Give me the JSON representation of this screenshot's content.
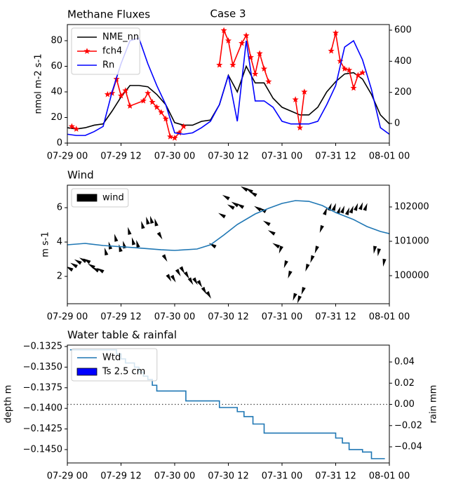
{
  "chart_data": [
    {
      "type": "line",
      "title": "Methane Fluxes",
      "suptitle": "Case 3",
      "ylabel": "nmol m-2 s-1",
      "xlim": [
        0,
        72
      ],
      "xticks": [
        {
          "value": 0,
          "label": "07-29 00"
        },
        {
          "value": 12,
          "label": "07-29 12"
        },
        {
          "value": 24,
          "label": "07-30 00"
        },
        {
          "value": 36,
          "label": "07-30 12"
        },
        {
          "value": 48,
          "label": "07-31 00"
        },
        {
          "value": 60,
          "label": "07-31 12"
        },
        {
          "value": 72,
          "label": "08-01 00"
        }
      ],
      "ylim": [
        0,
        92.6
      ],
      "yticks": [
        0,
        20,
        40,
        60,
        80
      ],
      "y2lim": [
        -126,
        636
      ],
      "y2ticks": [
        0,
        200,
        400,
        600
      ],
      "legend": "upper left",
      "grid": false,
      "x": [
        0,
        2,
        4,
        6,
        8,
        10,
        12,
        14,
        16,
        18,
        20,
        22,
        24,
        26,
        28,
        30,
        32,
        34,
        36,
        38,
        40,
        42,
        44,
        46,
        48,
        50,
        52,
        54,
        56,
        58,
        60,
        62,
        64,
        66,
        68,
        70,
        72
      ],
      "series": [
        {
          "name": "NME_nn",
          "color": "#000000",
          "values": [
            12,
            11,
            12,
            14,
            15,
            25,
            36,
            45,
            45,
            44,
            38,
            30,
            16,
            14,
            14,
            17,
            18,
            30,
            53,
            40,
            60,
            47,
            47,
            35,
            28,
            25,
            22,
            22,
            28,
            40,
            48,
            54,
            55,
            50,
            38,
            22,
            15
          ]
        },
        {
          "name": "fch4",
          "color": "#ff0000",
          "marker": "star",
          "x": [
            1,
            2,
            5,
            9,
            10,
            11,
            12,
            13,
            14,
            17,
            18,
            19,
            20,
            21,
            22,
            23,
            24,
            25,
            26,
            30,
            34,
            35,
            36,
            37,
            39,
            40,
            41,
            42,
            43,
            44,
            45,
            48,
            51,
            52,
            53,
            56,
            59,
            60,
            61,
            62,
            63,
            64,
            65,
            66
          ],
          "values": [
            13,
            11,
            null,
            38,
            39,
            50,
            37,
            41,
            29,
            33,
            39,
            32,
            28,
            24,
            19,
            5,
            4,
            8,
            13,
            null,
            61,
            88,
            80,
            61,
            78,
            84,
            67,
            54,
            70,
            58,
            48,
            null,
            34,
            12,
            40,
            null,
            72,
            86,
            64,
            58,
            57,
            43,
            53,
            55
          ]
        },
        {
          "name": "Rn",
          "color": "#0000ff",
          "axis": "y2",
          "values": [
            -69,
            -77,
            -77,
            -52,
            -19,
            203,
            384,
            532,
            549,
            384,
            244,
            121,
            -60,
            -69,
            -60,
            -27,
            14,
            121,
            310,
            14,
            532,
            145,
            145,
            104,
            14,
            -3,
            -3,
            -3,
            14,
            121,
            244,
            491,
            532,
            409,
            219,
            -27,
            -69
          ]
        }
      ]
    },
    {
      "type": "quiver",
      "title": "Wind",
      "ylabel": "m s-1",
      "xlim": [
        0,
        72
      ],
      "xticks": [
        {
          "value": 0,
          "label": "07-29 00"
        },
        {
          "value": 12,
          "label": "07-29 12"
        },
        {
          "value": 24,
          "label": "07-30 00"
        },
        {
          "value": 36,
          "label": "07-30 12"
        },
        {
          "value": 48,
          "label": "07-31 00"
        },
        {
          "value": 60,
          "label": "07-31 12"
        },
        {
          "value": 72,
          "label": "08-01 00"
        }
      ],
      "ylim": [
        0.41,
        7.31
      ],
      "yticks": [
        2,
        4,
        6
      ],
      "y2lim": [
        99184,
        102633
      ],
      "y2ticks": [
        100000,
        101000,
        102000
      ],
      "legend": "upper left",
      "grid": false,
      "series": [
        {
          "name": "wind",
          "type": "quiver",
          "color": "#000000",
          "x": [
            0.6,
            1.6,
            2.5,
            3.6,
            4.5,
            5.5,
            6.4,
            7.5,
            8.6,
            9.5,
            10.8,
            11.8,
            12.7,
            13.8,
            14.7,
            15.7,
            16.8,
            17.9,
            18.8,
            19.8,
            20.7,
            21.8,
            22.7,
            23.7,
            24.8,
            25.7,
            26.7,
            27.6,
            28.6,
            29.6,
            30.6,
            31.6,
            32.6,
            34.7,
            35.6,
            36.7,
            37.6,
            38.8,
            39.7,
            40.8,
            41.7,
            42.7,
            43.8,
            44.7,
            45.8,
            46.8,
            47.7,
            48.8,
            49.7,
            50.8,
            51.8,
            52.7,
            53.6,
            54.7,
            55.7,
            56.8,
            57.7,
            58.7,
            59.7,
            60.7,
            61.6,
            62.7,
            63.6,
            64.6,
            65.7,
            66.7,
            68.7,
            69.6,
            70.8
          ],
          "values": [
            2.45,
            2.65,
            2.85,
            2.95,
            2.9,
            2.6,
            2.4,
            2.35,
            3.4,
            3.75,
            4.2,
            3.6,
            3.8,
            4.6,
            4.0,
            3.85,
            4.95,
            5.2,
            5.25,
            5.1,
            4.4,
            3.1,
            1.95,
            1.9,
            2.25,
            2.4,
            2.1,
            1.75,
            1.75,
            1.6,
            1.2,
            0.95,
            3.8,
            5.55,
            6.6,
            6.05,
            6.2,
            6.1,
            7.1,
            7.0,
            6.8,
            5.95,
            5.85,
            5.1,
            4.55,
            3.8,
            3.6,
            2.75,
            2.15,
            0.85,
            0.7,
            1.2,
            2.55,
            3.05,
            3.6,
            4.8,
            5.75,
            6.0,
            6.0,
            5.8,
            5.85,
            5.75,
            5.85,
            6.0,
            6.05,
            6.0,
            3.6,
            3.45,
            2.85
          ],
          "angles": [
            300,
            300,
            300,
            300,
            300,
            300,
            300,
            300,
            345,
            345,
            345,
            345,
            345,
            345,
            345,
            345,
            345,
            345,
            345,
            345,
            150,
            150,
            150,
            150,
            150,
            150,
            150,
            150,
            150,
            150,
            150,
            150,
            300,
            300,
            300,
            300,
            300,
            300,
            300,
            300,
            300,
            300,
            300,
            300,
            300,
            300,
            200,
            200,
            200,
            200,
            200,
            200,
            200,
            200,
            200,
            200,
            20,
            20,
            20,
            20,
            20,
            20,
            20,
            20,
            20,
            20,
            190,
            190,
            190
          ]
        },
        {
          "type": "line",
          "color": "#1f77b4",
          "axis": "y2",
          "x": [
            0,
            4,
            8,
            15,
            21,
            24,
            29,
            32,
            35,
            38,
            42,
            45,
            48,
            51,
            54,
            57,
            60,
            64,
            67,
            70,
            72
          ],
          "values": [
            100898,
            100939,
            100878,
            100816,
            100755,
            100735,
            100776,
            100898,
            101184,
            101490,
            101796,
            101959,
            102102,
            102184,
            102163,
            102041,
            101837,
            101633,
            101429,
            101286,
            101224
          ]
        }
      ]
    },
    {
      "type": "line",
      "title": "Water table & rainfal",
      "ylabel": "depth m",
      "y2label": "rain mm",
      "xlim": [
        0,
        72
      ],
      "xticks": [
        {
          "value": 0,
          "label": "07-29 00"
        },
        {
          "value": 12,
          "label": "07-29 12"
        },
        {
          "value": 24,
          "label": "07-30 00"
        },
        {
          "value": 36,
          "label": "07-30 12"
        },
        {
          "value": 48,
          "label": "07-31 00"
        },
        {
          "value": 60,
          "label": "07-31 12"
        },
        {
          "value": 72,
          "label": "08-01 00"
        }
      ],
      "ylim": [
        -0.14662,
        -0.13233
      ],
      "yticks": [
        {
          "value": -0.1325,
          "label": "−0.1325"
        },
        {
          "value": -0.135,
          "label": "−0.1350"
        },
        {
          "value": -0.1375,
          "label": "−0.1375"
        },
        {
          "value": -0.14,
          "label": "−0.1400"
        },
        {
          "value": -0.1425,
          "label": "−0.1425"
        },
        {
          "value": -0.145,
          "label": "−0.1450"
        }
      ],
      "y2lim": [
        -0.0552,
        0.0559
      ],
      "y2ticks": [
        {
          "value": -0.04,
          "label": "−0.04"
        },
        {
          "value": -0.02,
          "label": "−0.02"
        },
        {
          "value": 0,
          "label": "0.00"
        },
        {
          "value": 0.02,
          "label": "0.02"
        },
        {
          "value": 0.04,
          "label": "0.04"
        }
      ],
      "hline": {
        "value": 0,
        "axis": "y2"
      },
      "legend": "upper left",
      "grid": false,
      "series": [
        {
          "name": "Wtd",
          "color": "#1f77b4",
          "drawstyle": "steps-post",
          "x": [
            0.6,
            10,
            11,
            12,
            13,
            15,
            16,
            17,
            18,
            19,
            20,
            26.5,
            34,
            38,
            39.5,
            41.5,
            44,
            60,
            61.5,
            63,
            66,
            68,
            71
          ],
          "values": [
            -0.1329,
            -0.1329,
            -0.1334,
            -0.134,
            -0.1345,
            -0.135,
            -0.1356,
            -0.1361,
            -0.1365,
            -0.1372,
            -0.1379,
            -0.1391,
            -0.1399,
            -0.1404,
            -0.141,
            -0.1419,
            -0.143,
            -0.1436,
            -0.1442,
            -0.145,
            -0.1453,
            -0.1461,
            -0.1461
          ]
        },
        {
          "name": "Ts 2.5 cm",
          "type": "bar",
          "color": "#0000ff",
          "axis": "y2",
          "x": [
            0,
            12,
            24,
            36,
            48,
            60,
            72
          ],
          "values": [
            0,
            0,
            0,
            0,
            0,
            0,
            0
          ]
        }
      ]
    }
  ]
}
